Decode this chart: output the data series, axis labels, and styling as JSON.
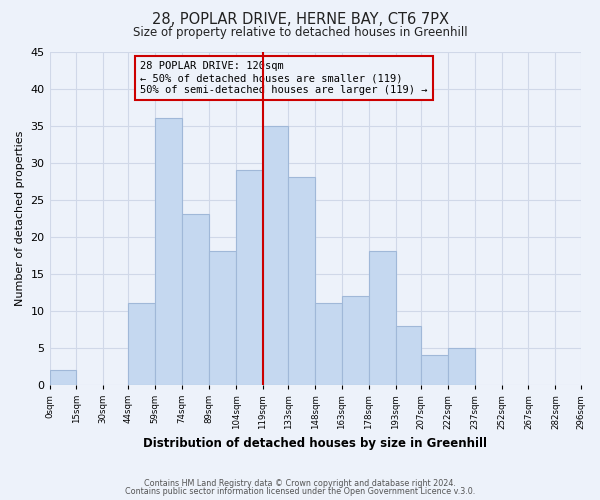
{
  "title": "28, POPLAR DRIVE, HERNE BAY, CT6 7PX",
  "subtitle": "Size of property relative to detached houses in Greenhill",
  "xlabel": "Distribution of detached houses by size in Greenhill",
  "ylabel": "Number of detached properties",
  "bar_edges": [
    0,
    15,
    30,
    44,
    59,
    74,
    89,
    104,
    119,
    133,
    148,
    163,
    178,
    193,
    207,
    222,
    237,
    252,
    267,
    282,
    296
  ],
  "bar_heights": [
    2,
    0,
    0,
    11,
    36,
    23,
    18,
    29,
    35,
    28,
    11,
    12,
    18,
    8,
    4,
    5,
    0,
    0,
    0,
    0
  ],
  "bar_color": "#c5d8f0",
  "bar_edge_color": "#a0b8d8",
  "vline_x": 119,
  "vline_color": "#cc0000",
  "ylim": [
    0,
    45
  ],
  "xtick_labels": [
    "0sqm",
    "15sqm",
    "30sqm",
    "44sqm",
    "59sqm",
    "74sqm",
    "89sqm",
    "104sqm",
    "119sqm",
    "133sqm",
    "148sqm",
    "163sqm",
    "178sqm",
    "193sqm",
    "207sqm",
    "222sqm",
    "237sqm",
    "252sqm",
    "267sqm",
    "282sqm",
    "296sqm"
  ],
  "annotation_title": "28 POPLAR DRIVE: 120sqm",
  "annotation_line1": "← 50% of detached houses are smaller (119)",
  "annotation_line2": "50% of semi-detached houses are larger (119) →",
  "footnote1": "Contains HM Land Registry data © Crown copyright and database right 2024.",
  "footnote2": "Contains public sector information licensed under the Open Government Licence v.3.0.",
  "grid_color": "#d0d8e8",
  "background_color": "#edf2fa"
}
